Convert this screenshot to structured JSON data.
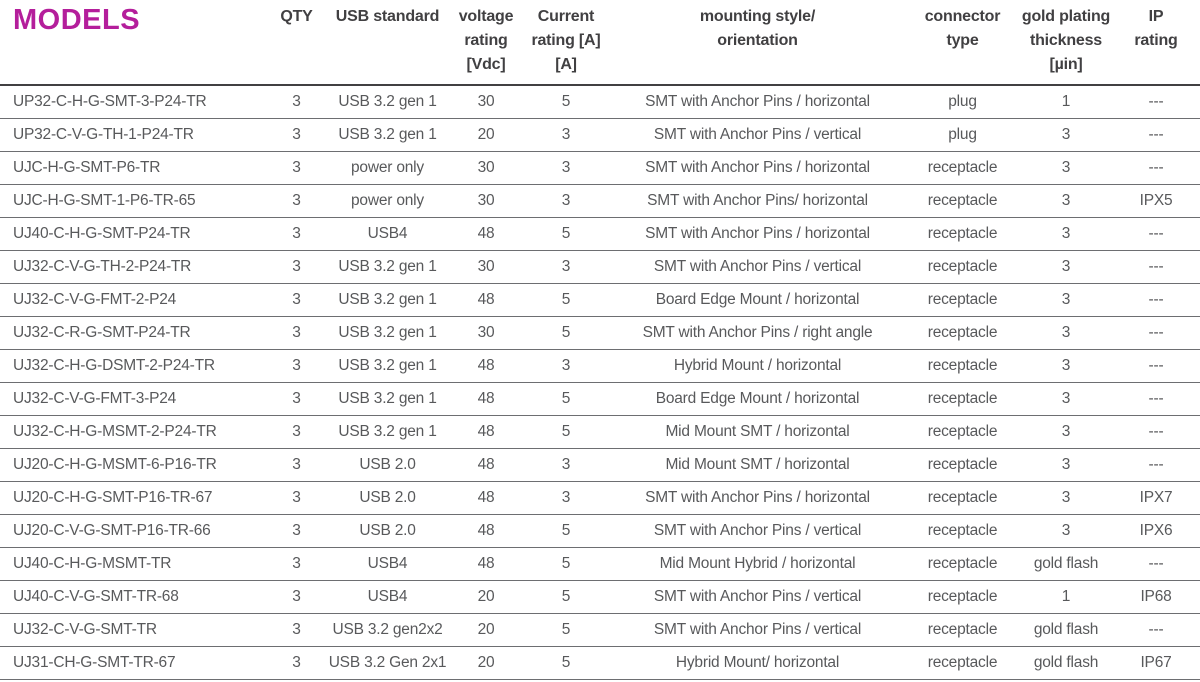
{
  "page": {
    "title": "MODELS"
  },
  "colors": {
    "accent": "#b41e9b",
    "header_text": "#414042",
    "body_text": "#58595b",
    "row_rule": "#6d6e71",
    "header_rule": "#414042",
    "background": "#ffffff"
  },
  "table": {
    "columns": [
      {
        "id": "model",
        "header_lines": [
          "MODELS"
        ],
        "align": "left"
      },
      {
        "id": "qty",
        "header_lines": [
          "QTY"
        ],
        "align": "center"
      },
      {
        "id": "usb",
        "header_lines": [
          "USB standard"
        ],
        "align": "center"
      },
      {
        "id": "voltage",
        "header_lines": [
          "voltage",
          "rating",
          "[Vdc]"
        ],
        "align": "center"
      },
      {
        "id": "current",
        "header_lines": [
          "Current",
          "rating [A]",
          "[A]"
        ],
        "align": "center"
      },
      {
        "id": "mounting",
        "header_lines": [
          "mounting style/",
          "orientation"
        ],
        "align": "center"
      },
      {
        "id": "connector",
        "header_lines": [
          "connector",
          "type"
        ],
        "align": "center"
      },
      {
        "id": "gold",
        "header_lines": [
          "gold plating",
          "thickness",
          "[µin]"
        ],
        "align": "center"
      },
      {
        "id": "ip",
        "header_lines": [
          "IP",
          "rating"
        ],
        "align": "center"
      }
    ],
    "rows": [
      [
        "UP32-C-H-G-SMT-3-P24-TR",
        "3",
        "USB 3.2 gen 1",
        "30",
        "5",
        "SMT with Anchor Pins / horizontal",
        "plug",
        "1",
        "---"
      ],
      [
        "UP32-C-V-G-TH-1-P24-TR",
        "3",
        "USB 3.2 gen 1",
        "20",
        "3",
        "SMT with Anchor Pins / vertical",
        "plug",
        "3",
        "---"
      ],
      [
        "UJC-H-G-SMT-P6-TR",
        "3",
        "power only",
        "30",
        "3",
        "SMT with Anchor Pins / horizontal",
        "receptacle",
        "3",
        "---"
      ],
      [
        "UJC-H-G-SMT-1-P6-TR-65",
        "3",
        "power only",
        "30",
        "3",
        "SMT with Anchor Pins/ horizontal",
        "receptacle",
        "3",
        "IPX5"
      ],
      [
        "UJ40-C-H-G-SMT-P24-TR",
        "3",
        "USB4",
        "48",
        "5",
        "SMT with Anchor Pins / horizontal",
        "receptacle",
        "3",
        "---"
      ],
      [
        "UJ32-C-V-G-TH-2-P24-TR",
        "3",
        "USB 3.2 gen 1",
        "30",
        "3",
        "SMT with Anchor Pins / vertical",
        "receptacle",
        "3",
        "---"
      ],
      [
        "UJ32-C-V-G-FMT-2-P24",
        "3",
        "USB 3.2 gen 1",
        "48",
        "5",
        "Board Edge Mount / horizontal",
        "receptacle",
        "3",
        "---"
      ],
      [
        "UJ32-C-R-G-SMT-P24-TR",
        "3",
        "USB 3.2 gen 1",
        "30",
        "5",
        "SMT with Anchor Pins / right angle",
        "receptacle",
        "3",
        "---"
      ],
      [
        "UJ32-C-H-G-DSMT-2-P24-TR",
        "3",
        "USB 3.2 gen 1",
        "48",
        "3",
        "Hybrid Mount / horizontal",
        "receptacle",
        "3",
        "---"
      ],
      [
        "UJ32-C-V-G-FMT-3-P24",
        "3",
        "USB 3.2 gen 1",
        "48",
        "5",
        "Board Edge Mount / horizontal",
        "receptacle",
        "3",
        "---"
      ],
      [
        "UJ32-C-H-G-MSMT-2-P24-TR",
        "3",
        "USB 3.2 gen 1",
        "48",
        "5",
        "Mid Mount SMT / horizontal",
        "receptacle",
        "3",
        "---"
      ],
      [
        "UJ20-C-H-G-MSMT-6-P16-TR",
        "3",
        "USB 2.0",
        "48",
        "3",
        "Mid Mount SMT / horizontal",
        "receptacle",
        "3",
        "---"
      ],
      [
        "UJ20-C-H-G-SMT-P16-TR-67",
        "3",
        "USB 2.0",
        "48",
        "3",
        "SMT with Anchor Pins / horizontal",
        "receptacle",
        "3",
        "IPX7"
      ],
      [
        "UJ20-C-V-G-SMT-P16-TR-66",
        "3",
        "USB 2.0",
        "48",
        "5",
        "SMT with Anchor Pins / vertical",
        "receptacle",
        "3",
        "IPX6"
      ],
      [
        "UJ40-C-H-G-MSMT-TR",
        "3",
        "USB4",
        "48",
        "5",
        "Mid Mount Hybrid / horizontal",
        "receptacle",
        "gold flash",
        "---"
      ],
      [
        "UJ40-C-V-G-SMT-TR-68",
        "3",
        "USB4",
        "20",
        "5",
        "SMT with Anchor Pins / vertical",
        "receptacle",
        "1",
        "IP68"
      ],
      [
        "UJ32-C-V-G-SMT-TR",
        "3",
        "USB 3.2 gen2x2",
        "20",
        "5",
        "SMT with Anchor Pins / vertical",
        "receptacle",
        "gold flash",
        "---"
      ],
      [
        "UJ31-CH-G-SMT-TR-67",
        "3",
        "USB 3.2 Gen 2x1",
        "20",
        "5",
        "Hybrid Mount/ horizontal",
        "receptacle",
        "gold flash",
        "IP67"
      ]
    ]
  }
}
